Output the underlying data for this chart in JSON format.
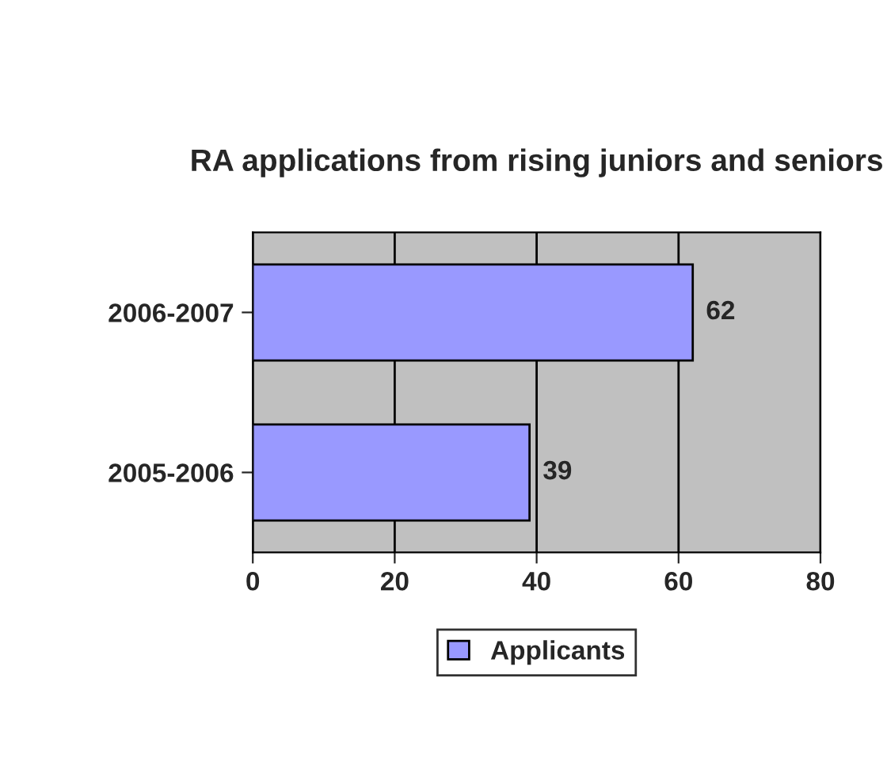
{
  "chart_data": {
    "type": "bar",
    "orientation": "horizontal",
    "title": "RA applications from rising juniors and seniors",
    "categories": [
      "2006-2007",
      "2005-2006"
    ],
    "series": [
      {
        "name": "Applicants",
        "color": "#9999ff",
        "values": [
          62,
          39
        ]
      }
    ],
    "xlim": [
      0,
      80
    ],
    "xticks": [
      0,
      20,
      40,
      60,
      80
    ],
    "grid": "x",
    "legend": "bottom",
    "data_labels": true
  }
}
